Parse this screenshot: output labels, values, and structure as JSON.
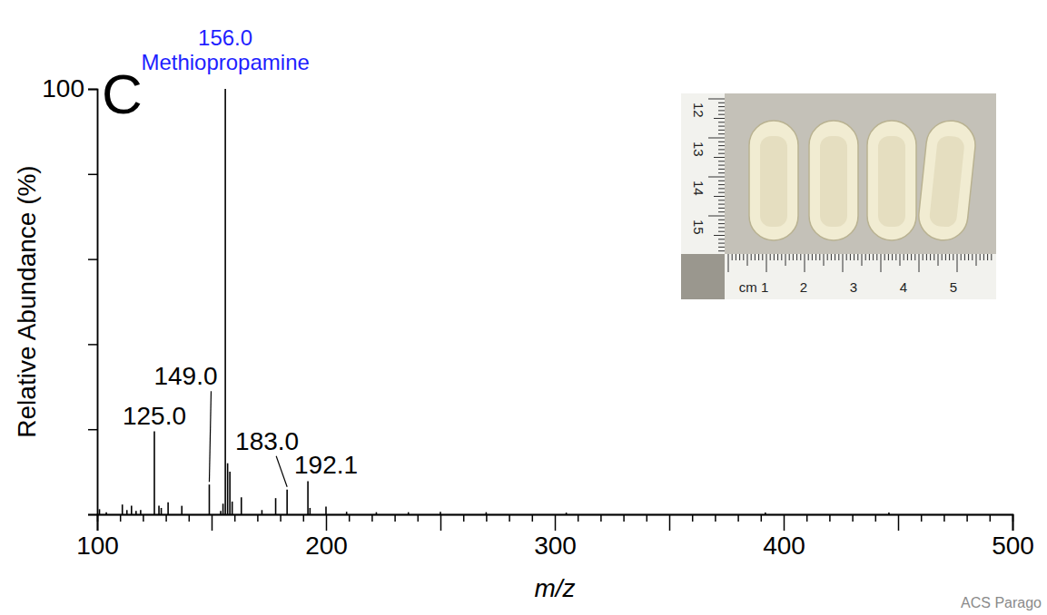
{
  "chart_data": {
    "type": "spectrum",
    "panel": "C",
    "title": "156.0",
    "subtitle": "Methiopropamine",
    "x_label": "m/z",
    "y_label": "Relative Abundance (%)",
    "source": "ACS Parago",
    "color": "#000000",
    "x": [
      101.0,
      104.0,
      111.0,
      113.0,
      115.0,
      117.0,
      119.0,
      125.0,
      127.0,
      128.0,
      131.0,
      137.0,
      149.0,
      154.0,
      155.0,
      156.0,
      157.0,
      158.0,
      159.0,
      163.0,
      172.0,
      178.0,
      183.0,
      192.1,
      193.0,
      200.0,
      209.0,
      222.0,
      236.0,
      250.0,
      270.0,
      305.0,
      392.0,
      446.0
    ],
    "values": [
      1.2,
      0.5,
      2.3,
      1.0,
      2.0,
      0.8,
      1.0,
      19.5,
      2.0,
      1.5,
      2.8,
      2.0,
      7.0,
      0.8,
      2.5,
      100,
      12.0,
      10.0,
      3.0,
      4.0,
      1.0,
      3.8,
      5.8,
      7.8,
      1.5,
      1.8,
      0.6,
      0.5,
      0.5,
      0.6,
      0.5,
      0.4,
      0.4,
      0.4
    ],
    "peak_labels": [
      {
        "x": 125.0,
        "label": "125.0"
      },
      {
        "x": 149.0,
        "label": "149.0"
      },
      {
        "x": 183.0,
        "label": "183.0"
      },
      {
        "x": 192.1,
        "label": "192.1"
      }
    ],
    "xlim": [
      100,
      500
    ],
    "xticks": [
      100,
      200,
      300,
      400,
      500
    ],
    "x_mid_ticks": [
      150,
      250,
      350,
      450
    ],
    "x_minor_ticks": [
      110,
      120,
      130,
      140,
      160,
      170,
      180,
      190,
      210,
      220,
      230,
      240,
      260,
      270,
      280,
      290,
      310,
      320,
      330,
      340,
      360,
      370,
      380,
      390,
      410,
      420,
      430,
      440,
      460,
      470,
      480,
      490
    ],
    "ylim": [
      0,
      100
    ],
    "yticks": [
      100
    ],
    "y_minor_ticks": [
      0,
      20,
      40,
      60,
      80
    ],
    "inset": {
      "vertical_ruler": [
        "12",
        "13",
        "14",
        "15"
      ],
      "horizontal_ruler": [
        "cm 1",
        "2",
        "3",
        "4",
        "5"
      ]
    }
  }
}
